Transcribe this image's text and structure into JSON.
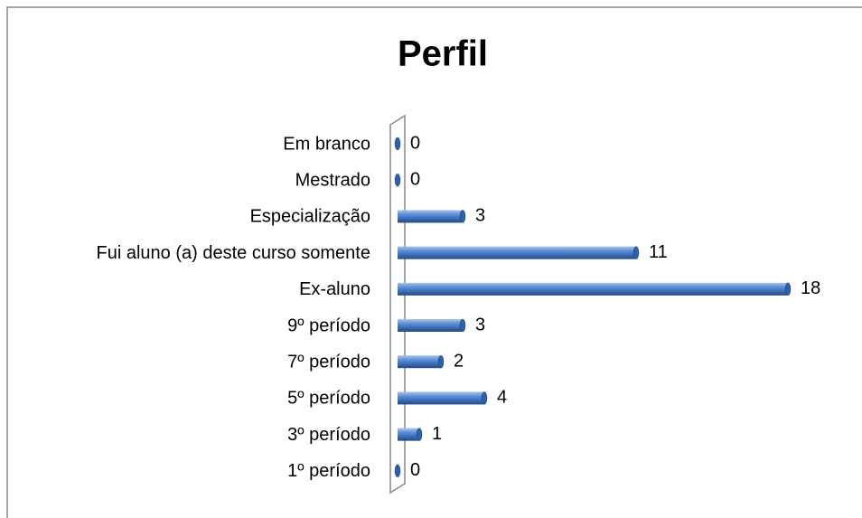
{
  "chart_data": {
    "type": "bar",
    "title": "Perfil",
    "categories": [
      "Em branco",
      "Mestrado",
      "Especialização",
      "Fui aluno (a) deste curso somente",
      "Ex-aluno",
      "9º período",
      "7º período",
      "5º período",
      "3º período",
      "1º período"
    ],
    "values": [
      0,
      0,
      3,
      11,
      18,
      3,
      2,
      4,
      1,
      0
    ],
    "color": "#4a7ebb"
  }
}
